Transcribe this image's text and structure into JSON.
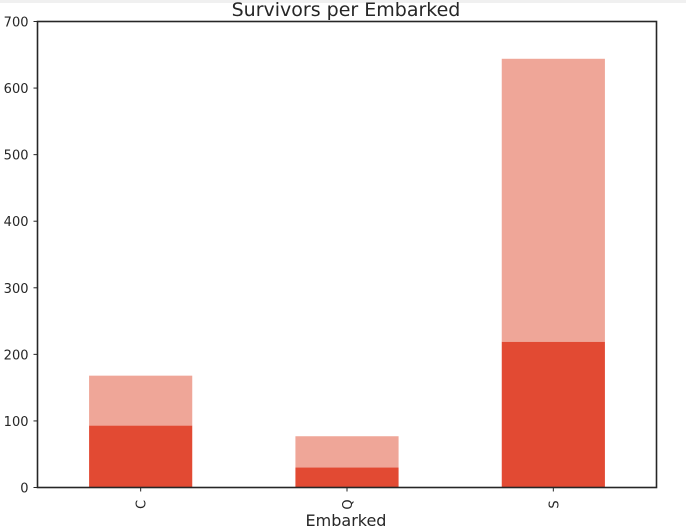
{
  "chart_data": {
    "type": "bar",
    "stacked": true,
    "title": "Survivors per Embarked",
    "xlabel": "Embarked",
    "ylabel": "",
    "categories": [
      "C",
      "Q",
      "S"
    ],
    "ylim": [
      0,
      700
    ],
    "yticks": [
      0,
      100,
      200,
      300,
      400,
      500,
      600,
      700
    ],
    "grid": false,
    "series": [
      {
        "values": [
          93,
          30,
          219
        ],
        "color": "#e24a33"
      },
      {
        "values": [
          75,
          47,
          425
        ],
        "color": "#efa698"
      }
    ]
  }
}
